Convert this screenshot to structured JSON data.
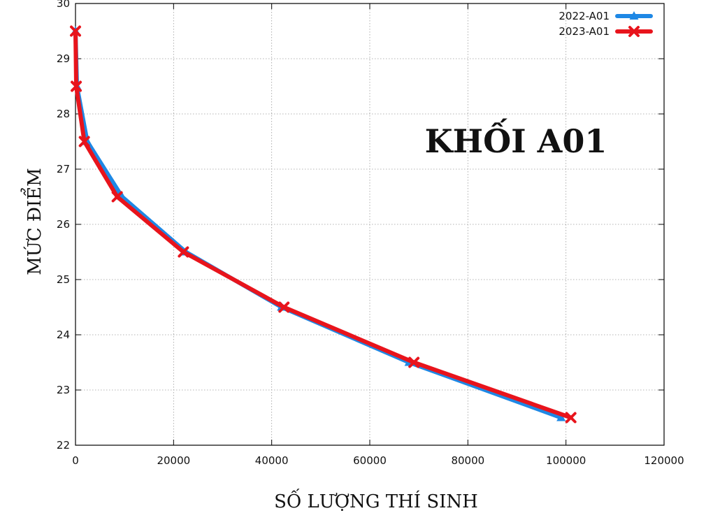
{
  "chart_data": {
    "type": "line",
    "title": "",
    "xlabel": "SỐ LƯỢNG THÍ SINH",
    "ylabel": "MỨC ĐIỂM",
    "xlim": [
      0,
      120000
    ],
    "ylim": [
      22,
      30
    ],
    "x_ticks": [
      "0",
      "20000",
      "40000",
      "60000",
      "80000",
      "100000",
      "120000"
    ],
    "y_ticks": [
      "22",
      "23",
      "24",
      "25",
      "26",
      "27",
      "28",
      "29",
      "30"
    ],
    "grid": true,
    "legend_position": "top-right",
    "annotation": "KHỐI A01",
    "series": [
      {
        "name": "2022-A01",
        "color": "#1e88e5",
        "marker": "triangle",
        "points": [
          [
            0,
            29.5
          ],
          [
            300,
            28.5
          ],
          [
            2400,
            27.5
          ],
          [
            9500,
            26.5
          ],
          [
            22500,
            25.5
          ],
          [
            42000,
            24.5
          ],
          [
            68000,
            23.5
          ],
          [
            99000,
            22.5
          ]
        ]
      },
      {
        "name": "2023-A01",
        "color": "#e8141c",
        "marker": "x",
        "points": [
          [
            0,
            29.5
          ],
          [
            150,
            28.5
          ],
          [
            1800,
            27.5
          ],
          [
            8500,
            26.5
          ],
          [
            22000,
            25.5
          ],
          [
            42500,
            24.5
          ],
          [
            69000,
            23.5
          ],
          [
            101000,
            22.5
          ]
        ]
      }
    ]
  }
}
